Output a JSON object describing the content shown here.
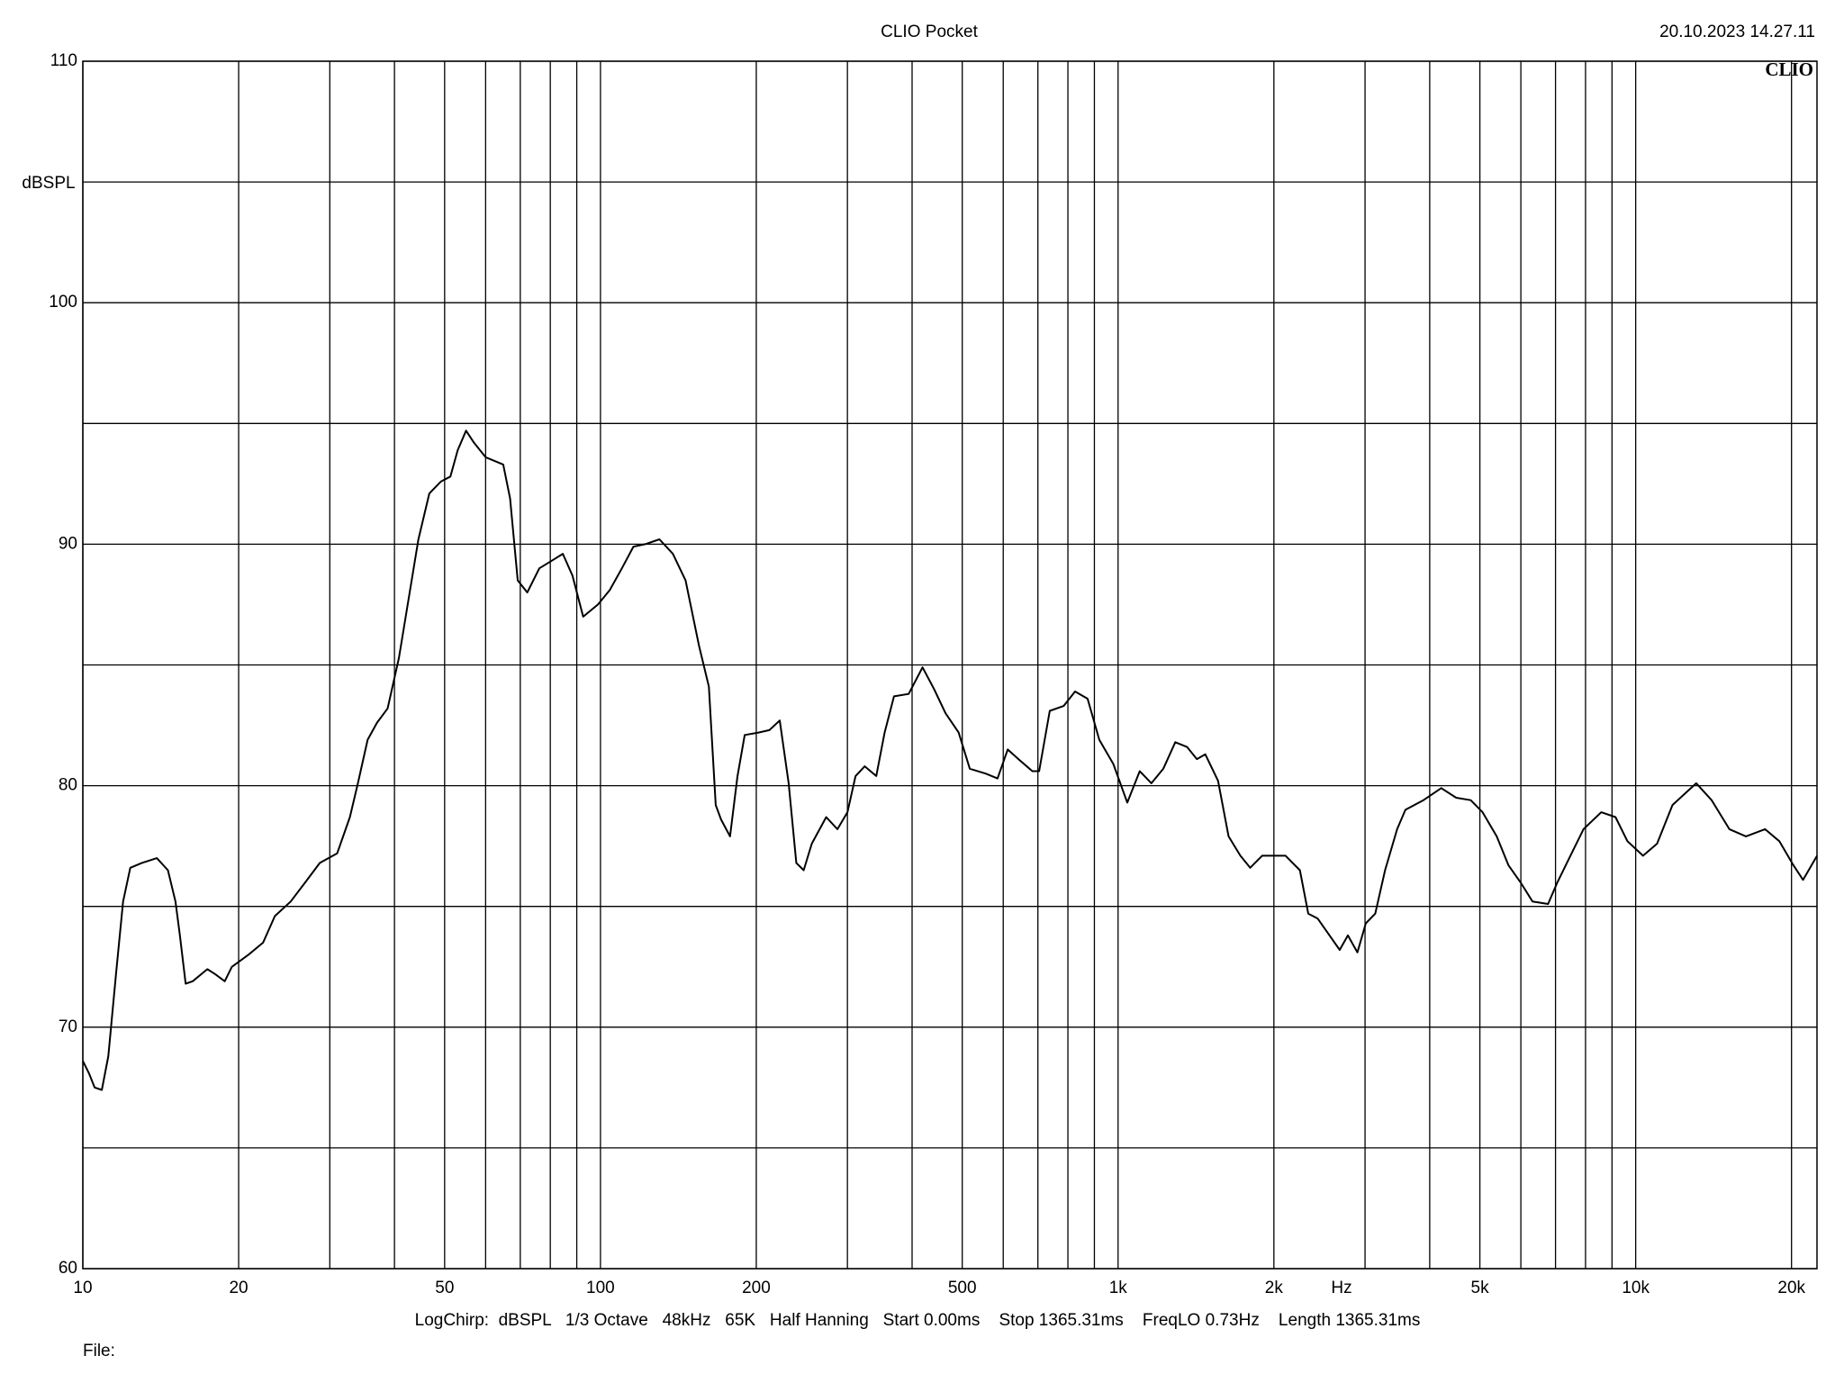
{
  "chart_data": {
    "type": "line",
    "title": "CLIO Pocket",
    "timestamp": "20.10.2023 14.27.11",
    "logo": "CLIO",
    "y_label": "dBSPL",
    "x_label": "Hz",
    "footer": "LogChirp:  dBSPL   1/3 Octave   48kHz   65K   Half Hanning   Start 0.00ms    Stop 1365.31ms    FreqLO 0.73Hz    Length 1365.31ms",
    "file_label": "File:",
    "x_log": true,
    "grid": true,
    "color": "#000000",
    "xlim": [
      10,
      22400
    ],
    "ylim": [
      60,
      110
    ],
    "xticks": [
      10,
      20,
      50,
      100,
      200,
      500,
      {
        "value": 1000,
        "label": "1k"
      },
      {
        "value": 2000,
        "label": "2k"
      },
      {
        "value": 5000,
        "label": "5k"
      },
      {
        "value": 10000,
        "label": "10k"
      },
      {
        "value": 20000,
        "label": "20k"
      }
    ],
    "xgrid_minor": [
      30,
      40,
      60,
      70,
      80,
      90,
      300,
      400,
      600,
      700,
      800,
      900,
      3000,
      4000,
      6000,
      7000,
      8000,
      9000
    ],
    "yticks": [
      60,
      70,
      80,
      90,
      100,
      110
    ],
    "ygrid_minor": [
      65,
      75,
      85,
      95,
      105
    ],
    "x": [
      10,
      10.27,
      10.54,
      10.88,
      11.2,
      11.6,
      11.96,
      12.35,
      13.0,
      13.9,
      14.6,
      15.1,
      15.4,
      15.8,
      16.3,
      17.4,
      18.0,
      18.8,
      19.4,
      20.9,
      22.3,
      23.5,
      25.2,
      26.9,
      28.7,
      31.0,
      32.8,
      34.0,
      35.5,
      37.0,
      38.8,
      40.8,
      42.8,
      44.5,
      46.7,
      49.2,
      51.3,
      53.0,
      55.0,
      57.0,
      60.0,
      64.9,
      66.9,
      69.2,
      72.2,
      76.2,
      80.3,
      84.6,
      88.3,
      92.6,
      98.9,
      104.2,
      110,
      115.8,
      122,
      130,
      138,
      146,
      155,
      162,
      167,
      171,
      178,
      184,
      190,
      202,
      212,
      222,
      231,
      239,
      247,
      256,
      273,
      287,
      300,
      311,
      324,
      341,
      354,
      369,
      394,
      419,
      441,
      464,
      492,
      517,
      555,
      585,
      612,
      642,
      683,
      704,
      738,
      785,
      826,
      873,
      920,
      979,
      1042,
      1101,
      1160,
      1223,
      1290,
      1360,
      1420,
      1474,
      1560,
      1635,
      1723,
      1800,
      1898,
      2107,
      2245,
      2330,
      2430,
      2542,
      2680,
      2780,
      2900,
      3010,
      3140,
      3280,
      3460,
      3590,
      3890,
      4210,
      4500,
      4800,
      5060,
      5390,
      5680,
      5990,
      6320,
      6770,
      7060,
      7520,
      7930,
      8580,
      9140,
      9640,
      10330,
      11000,
      11780,
      13090,
      14020,
      15170,
      16330,
      17780,
      18950,
      20180,
      21050,
      22410
    ],
    "values": [
      68.6,
      68.1,
      67.5,
      67.4,
      68.8,
      72.3,
      75.2,
      76.6,
      76.8,
      77.0,
      76.5,
      75.2,
      73.8,
      71.8,
      71.9,
      72.4,
      72.2,
      71.9,
      72.5,
      73.0,
      73.5,
      74.6,
      75.2,
      76.0,
      76.8,
      77.2,
      78.7,
      80.1,
      81.9,
      82.6,
      83.2,
      85.3,
      88.0,
      90.2,
      92.1,
      92.6,
      92.8,
      93.9,
      94.7,
      94.2,
      93.6,
      93.3,
      91.9,
      88.5,
      88.0,
      89.0,
      89.3,
      89.6,
      88.7,
      87.0,
      87.5,
      88.1,
      89.0,
      89.9,
      90.0,
      90.2,
      89.6,
      88.5,
      85.8,
      84.1,
      79.2,
      78.6,
      77.9,
      80.4,
      82.1,
      82.2,
      82.3,
      82.7,
      80.1,
      76.8,
      76.5,
      77.6,
      78.7,
      78.2,
      78.9,
      80.4,
      80.8,
      80.4,
      82.2,
      83.7,
      83.8,
      84.9,
      84.0,
      83.0,
      82.2,
      80.7,
      80.5,
      80.3,
      81.5,
      81.1,
      80.6,
      80.6,
      83.1,
      83.3,
      83.9,
      83.6,
      81.9,
      80.9,
      79.3,
      80.6,
      80.1,
      80.7,
      81.8,
      81.6,
      81.1,
      81.3,
      80.2,
      77.9,
      77.1,
      76.6,
      77.1,
      77.1,
      76.5,
      74.7,
      74.5,
      73.9,
      73.2,
      73.8,
      73.1,
      74.3,
      74.7,
      76.5,
      78.2,
      79.0,
      79.4,
      79.9,
      79.5,
      79.4,
      78.9,
      77.9,
      76.7,
      76.0,
      75.2,
      75.1,
      76.0,
      77.2,
      78.2,
      78.9,
      78.7,
      77.7,
      77.1,
      77.6,
      79.2,
      80.1,
      79.4,
      78.2,
      77.9,
      78.2,
      77.7,
      76.7,
      76.1,
      77.1
    ]
  }
}
